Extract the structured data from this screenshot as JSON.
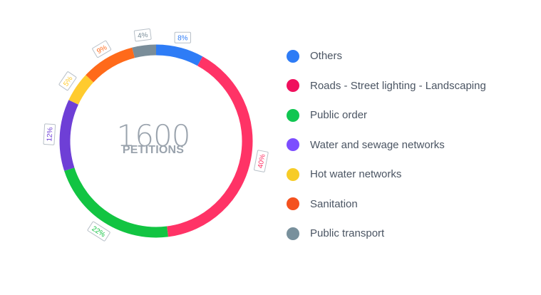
{
  "chart_data": {
    "type": "pie",
    "subtype": "donut",
    "center": {
      "total": "1600",
      "caption": "PETITIONS"
    },
    "slices": [
      {
        "label": "Others",
        "value": 8,
        "value_label": "8%",
        "color": "#2e7cf6"
      },
      {
        "label": "Roads - Street lighting - Landscaping",
        "value": 40,
        "value_label": "40%",
        "color": "#ff3366"
      },
      {
        "label": "Public order",
        "value": 22,
        "value_label": "22%",
        "color": "#12c442"
      },
      {
        "label": "Water and sewage networks",
        "value": 12,
        "value_label": "12%",
        "color": "#6e3fd6"
      },
      {
        "label": "Hot water networks",
        "value": 5,
        "value_label": "5%",
        "color": "#ffcb2e"
      },
      {
        "label": "Sanitation",
        "value": 9,
        "value_label": "9%",
        "color": "#ff6a1a"
      },
      {
        "label": "Public transport",
        "value": 4,
        "value_label": "4%",
        "color": "#7a8d99"
      }
    ],
    "start": "top",
    "direction": "clockwise",
    "legend": "right"
  },
  "legend_colors": {
    "Others": "#2e7cf6",
    "Roads - Street lighting - Landscaping": "#f0105d",
    "Public order": "#10c651",
    "Water and sewage networks": "#7c4dff",
    "Hot water networks": "#f7cc27",
    "Sanitation": "#f4511e",
    "Public transport": "#78909c"
  }
}
